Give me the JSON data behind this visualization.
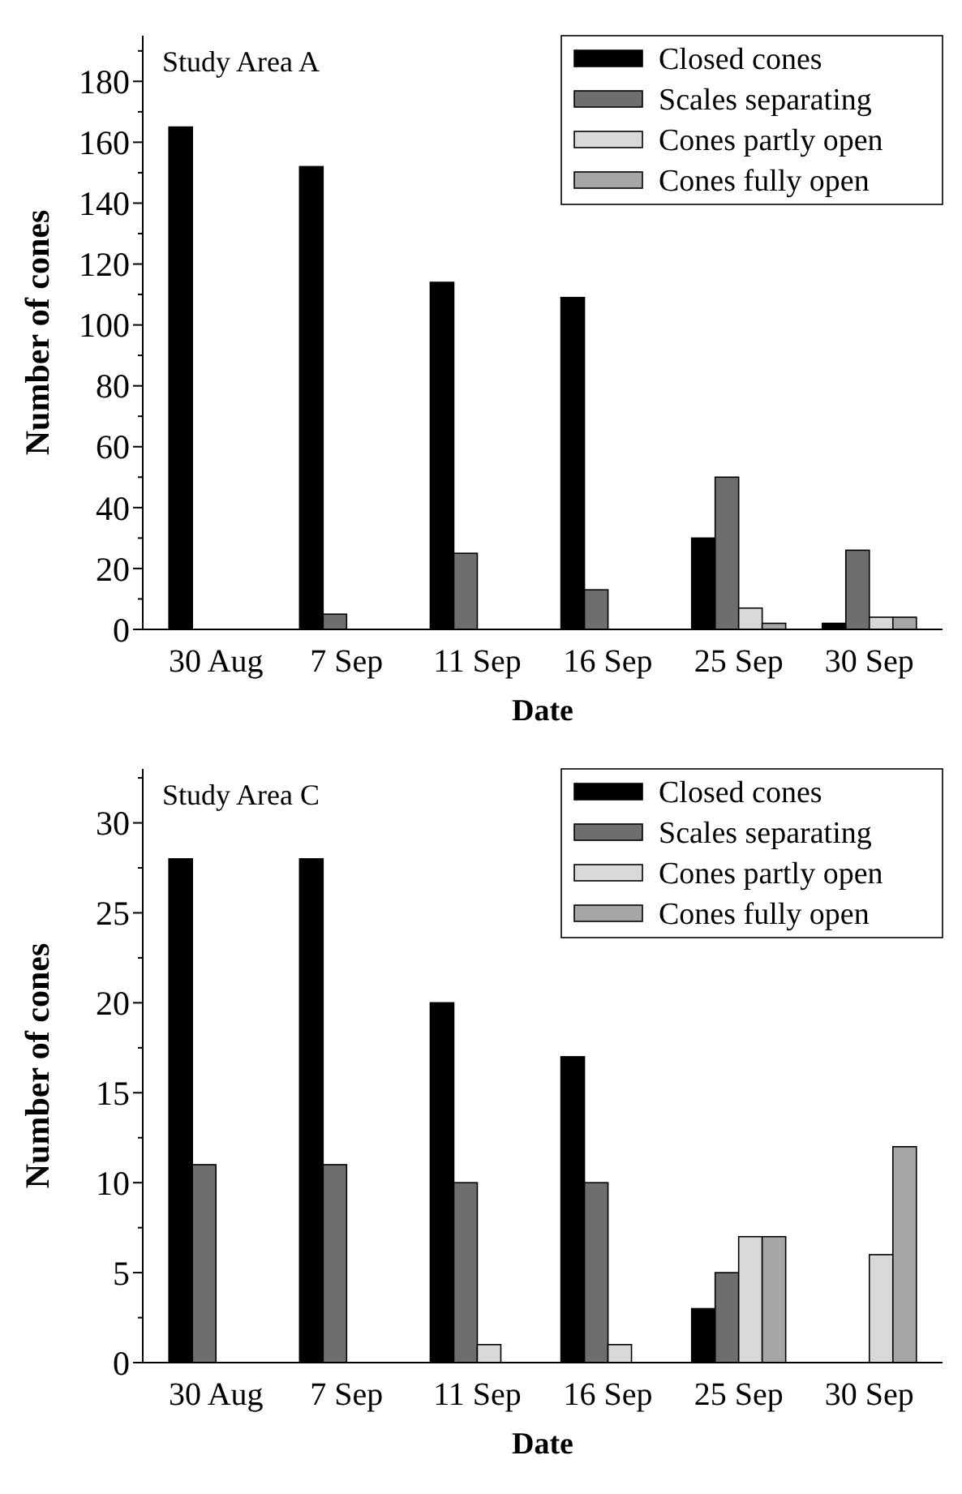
{
  "chart_data": [
    {
      "type": "bar",
      "title": "Study Area A",
      "xlabel": "Date",
      "ylabel": "Number of cones",
      "categories": [
        "30 Aug",
        "7 Sep",
        "11 Sep",
        "16 Sep",
        "25 Sep",
        "30 Sep"
      ],
      "series": [
        {
          "name": "Closed cones",
          "color": "#000000",
          "values": [
            165,
            152,
            114,
            109,
            30,
            2
          ]
        },
        {
          "name": "Scales separating",
          "color": "#6e6e6e",
          "values": [
            0,
            5,
            25,
            13,
            50,
            26
          ]
        },
        {
          "name": "Cones partly open",
          "color": "#d9d9d9",
          "values": [
            0,
            0,
            0,
            0,
            7,
            4
          ]
        },
        {
          "name": "Cones fully open",
          "color": "#a6a6a6",
          "values": [
            0,
            0,
            0,
            0,
            2,
            4
          ]
        }
      ],
      "ylim": [
        0,
        195
      ],
      "yticks": [
        0,
        {
          "value": 10,
          "label": null
        },
        20,
        {
          "value": 30,
          "label": null
        },
        40,
        {
          "value": 50,
          "label": null
        },
        60,
        {
          "value": 70,
          "label": null
        },
        80,
        {
          "value": 90,
          "label": null
        },
        100,
        {
          "value": 110,
          "label": null
        },
        120,
        {
          "value": 130,
          "label": null
        },
        140,
        {
          "value": 150,
          "label": null
        },
        160,
        {
          "value": 170,
          "label": null
        },
        180,
        {
          "value": 190,
          "label": null
        }
      ],
      "grid": false,
      "legend": "top right"
    },
    {
      "type": "bar",
      "title": "Study Area C",
      "xlabel": "Date",
      "ylabel": "Number of cones",
      "categories": [
        "30 Aug",
        "7 Sep",
        "11 Sep",
        "16 Sep",
        "25 Sep",
        "30 Sep"
      ],
      "series": [
        {
          "name": "Closed cones",
          "color": "#000000",
          "values": [
            28,
            28,
            20,
            17,
            3,
            0
          ]
        },
        {
          "name": "Scales separating",
          "color": "#6e6e6e",
          "values": [
            11,
            11,
            10,
            10,
            5,
            0
          ]
        },
        {
          "name": "Cones partly open",
          "color": "#d9d9d9",
          "values": [
            0,
            0,
            1,
            1,
            7,
            6
          ]
        },
        {
          "name": "Cones fully open",
          "color": "#a6a6a6",
          "values": [
            0,
            0,
            0,
            0,
            7,
            12
          ]
        }
      ],
      "ylim": [
        0,
        33
      ],
      "yticks": [
        0,
        {
          "value": 2.5,
          "label": null
        },
        5,
        {
          "value": 7.5,
          "label": null
        },
        10,
        {
          "value": 12.5,
          "label": null
        },
        15,
        {
          "value": 17.5,
          "label": null
        },
        20,
        {
          "value": 22.5,
          "label": null
        },
        25,
        {
          "value": 27.5,
          "label": null
        },
        30,
        {
          "value": 32.5,
          "label": null
        }
      ],
      "grid": false,
      "legend": "top right"
    }
  ]
}
